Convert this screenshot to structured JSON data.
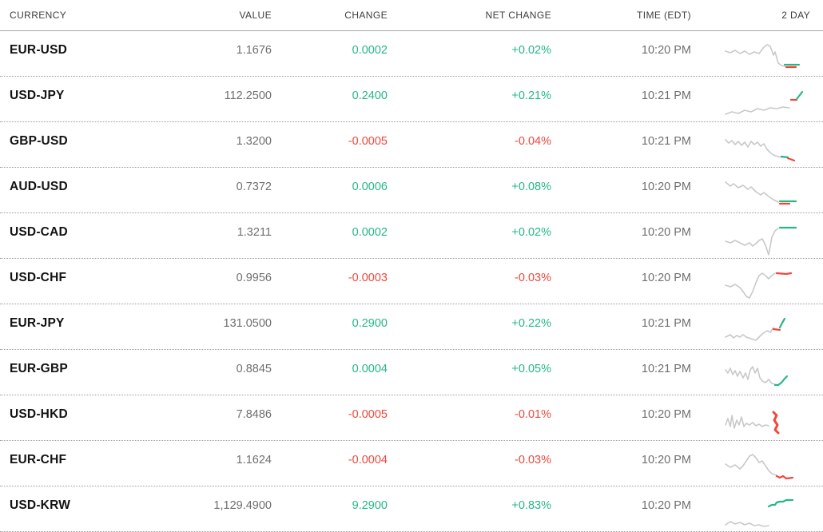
{
  "colors": {
    "up": "#25b785",
    "down": "#f0473d",
    "spark_gray": "#c9c9c9",
    "pair_text": "#121212",
    "number_text": "#6f6f6f",
    "header_text": "#3d3d3d"
  },
  "table": {
    "headers": {
      "currency": "CURRENCY",
      "value": "VALUE",
      "change": "CHANGE",
      "net_change": "NET CHANGE",
      "time": "TIME (EDT)",
      "two_day": "2 DAY"
    },
    "rows": [
      {
        "pair": "EUR-USD",
        "value": "1.1676",
        "change": "0.0002",
        "net_change": "+0.02%",
        "time": "10:20 PM",
        "direction": "up",
        "sparkline": [
          {
            "c": "gray",
            "p": "4,15 10,17 16,14 22,18 28,15 34,19 40,16 46,18 52,10 56,7 60,9 64,20 66,16 70,30 74,33 78,34"
          },
          {
            "c": "up",
            "p": "78,32 96,32"
          },
          {
            "c": "down",
            "p": "80,35 92,35"
          }
        ]
      },
      {
        "pair": "USD-JPY",
        "value": "112.2500",
        "change": "0.2400",
        "net_change": "+0.21%",
        "time": "10:21 PM",
        "direction": "up",
        "sparkline": [
          {
            "c": "gray",
            "p": "4,37 12,34 20,36 28,32 36,34 44,30 52,32 60,29 68,30 76,28 84,29"
          },
          {
            "c": "down",
            "p": "86,19 93,19"
          },
          {
            "c": "up",
            "p": "93,18 97,13 100,9"
          }
        ]
      },
      {
        "pair": "GBP-USD",
        "value": "1.3200",
        "change": "-0.0005",
        "net_change": "-0.04%",
        "time": "10:21 PM",
        "direction": "down",
        "sparkline": [
          {
            "c": "gray",
            "p": "4,12 8,16 12,13 16,18 20,14 24,19 28,15 32,21 36,14 40,18 44,15 48,20 52,17 56,24 60,28 64,31 70,33 74,34"
          },
          {
            "c": "up",
            "p": "74,33 82,34"
          },
          {
            "c": "down",
            "p": "82,35 90,38"
          }
        ]
      },
      {
        "pair": "AUD-USD",
        "value": "0.7372",
        "change": "0.0006",
        "net_change": "+0.08%",
        "time": "10:20 PM",
        "direction": "up",
        "sparkline": [
          {
            "c": "gray",
            "p": "4,8 10,13 14,10 20,15 26,12 32,17 36,14 42,20 48,24 52,21 58,26 64,30 70,33"
          },
          {
            "c": "down",
            "p": "72,35 84,35"
          },
          {
            "c": "up",
            "p": "72,32 92,32"
          }
        ]
      },
      {
        "pair": "USD-CAD",
        "value": "1.3211",
        "change": "0.0002",
        "net_change": "+0.02%",
        "time": "10:20 PM",
        "direction": "up",
        "sparkline": [
          {
            "c": "gray",
            "p": "4,25 10,27 16,24 22,27 28,30 34,27 38,31 42,28 46,24 50,22 54,30 58,42 62,20 66,12 70,9"
          },
          {
            "c": "up",
            "p": "72,8 92,8"
          }
        ]
      },
      {
        "pair": "USD-CHF",
        "value": "0.9956",
        "change": "-0.0003",
        "net_change": "-0.03%",
        "time": "10:20 PM",
        "direction": "down",
        "sparkline": [
          {
            "c": "gray",
            "p": "4,23 10,25 16,22 22,26 26,31 30,37 34,39 38,31 42,20 46,11 50,8 54,11 58,15 62,11 66,8"
          },
          {
            "c": "down",
            "p": "68,8 80,9 86,8"
          }
        ]
      },
      {
        "pair": "EUR-JPY",
        "value": "131.0500",
        "change": "0.2900",
        "net_change": "+0.22%",
        "time": "10:21 PM",
        "direction": "up",
        "sparkline": [
          {
            "c": "gray",
            "p": "4,31 10,28 14,32 18,29 22,31 26,28 30,31 36,33 42,35 46,31 50,27 56,23 60,25 64,19"
          },
          {
            "c": "down",
            "p": "64,21 72,22"
          },
          {
            "c": "up",
            "p": "72,19 75,13 78,8"
          }
        ]
      },
      {
        "pair": "EUR-GBP",
        "value": "0.8845",
        "change": "0.0004",
        "net_change": "+0.05%",
        "time": "10:21 PM",
        "direction": "up",
        "sparkline": [
          {
            "c": "gray",
            "p": "4,15 7,19 10,13 13,21 16,16 19,23 22,17 26,25 29,19 32,27 35,15 38,11 41,19 44,13 47,25 50,29 54,31 58,27 62,32 66,33"
          },
          {
            "c": "up",
            "p": "66,34 70,34 74,31 78,26 81,23"
          }
        ]
      },
      {
        "pair": "USD-HKD",
        "value": "7.8486",
        "change": "-0.0005",
        "net_change": "-0.01%",
        "time": "10:20 PM",
        "direction": "down",
        "sparkline": [
          {
            "c": "gray",
            "p": "4,27 7,19 10,29 12,15 15,31 18,21 21,27 24,17 27,29 30,25 34,27 38,24 42,28 46,26 50,29 54,27 58,28"
          },
          {
            "c": "down",
            "w": 3,
            "p": "64,11 68,15 65,21 69,27 66,33 70,37"
          }
        ]
      },
      {
        "pair": "EUR-CHF",
        "value": "1.1624",
        "change": "-0.0004",
        "net_change": "-0.03%",
        "time": "10:20 PM",
        "direction": "down",
        "sparkline": [
          {
            "c": "gray",
            "p": "4,19 10,23 16,20 22,25 26,21 30,15 34,9 38,7 42,11 46,17 50,15 54,21 58,27 62,31 68,33"
          },
          {
            "c": "down",
            "p": "68,34 72,36 76,34 80,37 88,36"
          }
        ]
      },
      {
        "pair": "USD-KRW",
        "value": "1,129.4900",
        "change": "9.2900",
        "net_change": "+0.83%",
        "time": "10:20 PM",
        "direction": "up",
        "sparkline": [
          {
            "c": "up",
            "p": "58,15 62,13 66,13 68,10 72,9 76,9 80,7 88,7"
          },
          {
            "c": "gray",
            "p": "4,38 10,34 16,37 22,35 28,38 34,36 40,39 46,38 52,40 58,39"
          }
        ]
      }
    ]
  }
}
